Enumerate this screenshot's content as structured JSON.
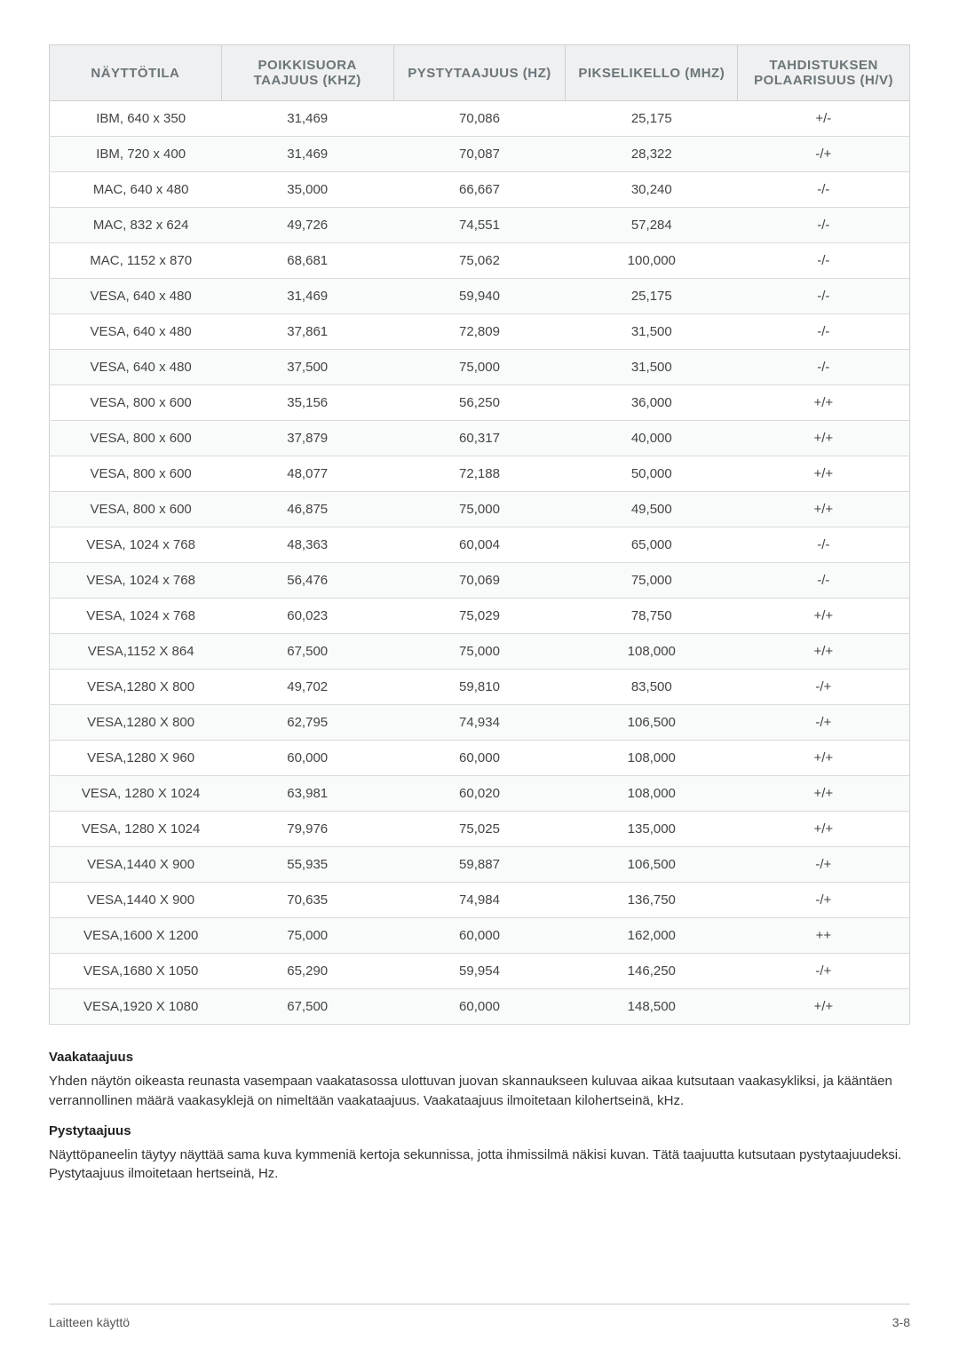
{
  "table": {
    "headers": [
      "NÄYTTÖTILA",
      "POIKKISUORA TAAJUUS (KHZ)",
      "PYSTYTAAJUUS (HZ)",
      "PIKSELIKELLO (MHZ)",
      "TAHDISTUKSEN POLAARISUUS (H/V)"
    ],
    "col_widths": [
      "20%",
      "20%",
      "20%",
      "20%",
      "20%"
    ],
    "rows": [
      [
        "IBM, 640 x 350",
        "31,469",
        "70,086",
        "25,175",
        "+/-"
      ],
      [
        "IBM, 720 x 400",
        "31,469",
        "70,087",
        "28,322",
        "-/+"
      ],
      [
        "MAC, 640 x 480",
        "35,000",
        "66,667",
        "30,240",
        "-/-"
      ],
      [
        "MAC, 832 x 624",
        "49,726",
        "74,551",
        "57,284",
        "-/-"
      ],
      [
        "MAC, 1152 x 870",
        "68,681",
        "75,062",
        "100,000",
        "-/-"
      ],
      [
        "VESA, 640 x 480",
        "31,469",
        "59,940",
        "25,175",
        "-/-"
      ],
      [
        "VESA, 640 x 480",
        "37,861",
        "72,809",
        "31,500",
        "-/-"
      ],
      [
        "VESA, 640 x 480",
        "37,500",
        "75,000",
        "31,500",
        "-/-"
      ],
      [
        "VESA, 800 x 600",
        "35,156",
        "56,250",
        "36,000",
        "+/+"
      ],
      [
        "VESA, 800 x 600",
        "37,879",
        "60,317",
        "40,000",
        "+/+"
      ],
      [
        "VESA, 800 x 600",
        "48,077",
        "72,188",
        "50,000",
        "+/+"
      ],
      [
        "VESA, 800 x 600",
        "46,875",
        "75,000",
        "49,500",
        "+/+"
      ],
      [
        "VESA, 1024 x 768",
        "48,363",
        "60,004",
        "65,000",
        "-/-"
      ],
      [
        "VESA, 1024 x 768",
        "56,476",
        "70,069",
        "75,000",
        "-/-"
      ],
      [
        "VESA, 1024 x 768",
        "60,023",
        "75,029",
        "78,750",
        "+/+"
      ],
      [
        "VESA,1152 X 864",
        "67,500",
        "75,000",
        "108,000",
        "+/+"
      ],
      [
        "VESA,1280 X 800",
        "49,702",
        "59,810",
        "83,500",
        "-/+"
      ],
      [
        "VESA,1280 X 800",
        "62,795",
        "74,934",
        "106,500",
        "-/+"
      ],
      [
        "VESA,1280 X 960",
        "60,000",
        "60,000",
        "108,000",
        "+/+"
      ],
      [
        "VESA, 1280 X 1024",
        "63,981",
        "60,020",
        "108,000",
        "+/+"
      ],
      [
        "VESA, 1280 X 1024",
        "79,976",
        "75,025",
        "135,000",
        "+/+"
      ],
      [
        "VESA,1440 X 900",
        "55,935",
        "59,887",
        "106,500",
        "-/+"
      ],
      [
        "VESA,1440 X 900",
        "70,635",
        "74,984",
        "136,750",
        "-/+"
      ],
      [
        "VESA,1600 X 1200",
        "75,000",
        "60,000",
        "162,000",
        "++"
      ],
      [
        "VESA,1680 X 1050",
        "65,290",
        "59,954",
        "146,250",
        "-/+"
      ],
      [
        "VESA,1920 X 1080",
        "67,500",
        "60,000",
        "148,500",
        "+/+"
      ]
    ]
  },
  "sections": [
    {
      "title": "Vaakataajuus",
      "body": "Yhden näytön oikeasta reunasta vasempaan vaakatasossa ulottuvan juovan skannaukseen kuluvaa aikaa kutsutaan vaakasykliksi, ja kääntäen verrannollinen määrä vaakasyklejä on nimeltään vaakataajuus. Vaakataajuus ilmoitetaan kilohertseinä, kHz."
    },
    {
      "title": "Pystytaajuus",
      "body": "Näyttöpaneelin täytyy näyttää sama kuva kymmeniä kertoja sekunnissa, jotta ihmissilmä näkisi kuvan. Tätä taajuutta kutsutaan pystytaajuudeksi. Pystytaajuus ilmoitetaan hertseinä, Hz."
    }
  ],
  "footer": {
    "left": "Laitteen käyttö",
    "right": "3-8"
  },
  "style": {
    "header_bg": "#eef0f1",
    "header_fg": "#6b7479",
    "border_color": "#cfd0d1",
    "row_alt_bg": "#f9fafa",
    "row_bg": "#ffffff",
    "body_font_size": 15,
    "header_font_size": 15
  }
}
